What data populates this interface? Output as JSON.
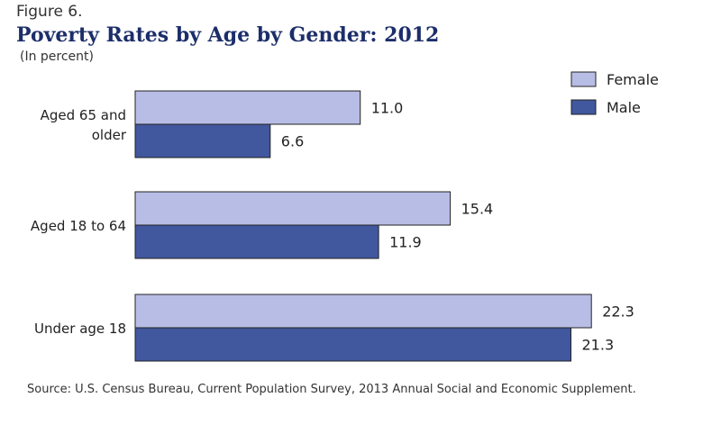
{
  "header": {
    "figure_label": "Figure 6.",
    "title": "Poverty Rates by Age by Gender: 2012",
    "subtitle": "(In percent)"
  },
  "footer": {
    "source": "Source: U.S. Census Bureau, Current Population Survey, 2013 Annual Social and Economic Supplement."
  },
  "colors": {
    "female": "#b8bde6",
    "male": "#41579e",
    "bar_stroke": "#222222",
    "text": "#222222"
  },
  "chart_data": {
    "type": "bar",
    "orientation": "horizontal",
    "title": "Poverty Rates by Age by Gender: 2012",
    "subtitle": "(In percent)",
    "categories": [
      [
        "Aged 65 and",
        "older"
      ],
      [
        "Aged 18 to 64"
      ],
      [
        "Under age 18"
      ]
    ],
    "series": [
      {
        "name": "Female",
        "values": [
          11.0,
          15.4,
          22.3
        ]
      },
      {
        "name": "Male",
        "values": [
          6.6,
          11.9,
          21.3
        ]
      }
    ],
    "value_labels": {
      "Female": [
        "11.0",
        "15.4",
        "22.3"
      ],
      "Male": [
        "6.6",
        "11.9",
        "21.3"
      ]
    },
    "xlim": [
      0,
      25
    ],
    "grid": false,
    "legend_position": "top-right"
  }
}
